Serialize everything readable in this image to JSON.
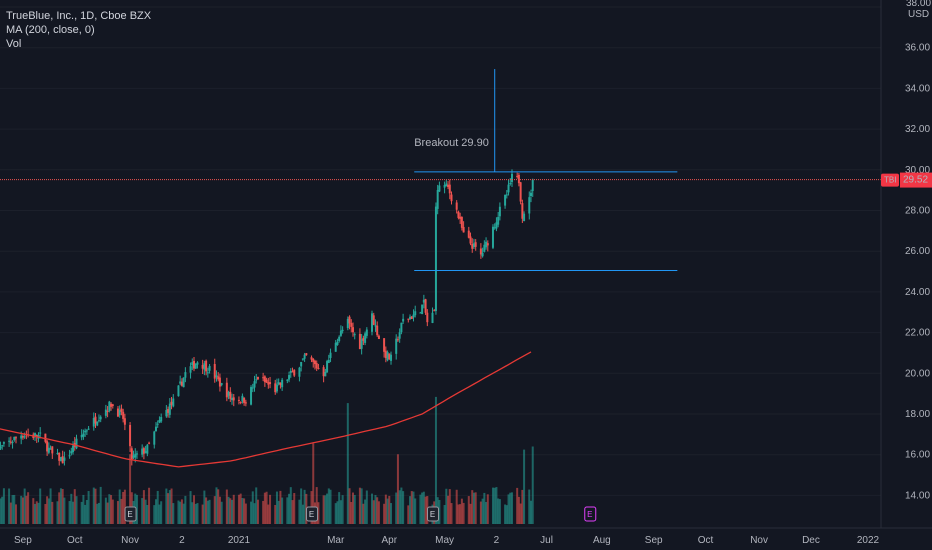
{
  "legend": {
    "symbol_line": "TrueBlue, Inc., 1D, Cboe BZX",
    "ma_line": "MA (200, close, 0)",
    "vol_line": "Vol"
  },
  "price_axis": {
    "unit": "USD",
    "top_label": "38.00",
    "ticks": [
      "36.00",
      "34.00",
      "32.00",
      "30.00",
      "28.00",
      "26.00",
      "24.00",
      "22.00",
      "20.00",
      "18.00",
      "16.00",
      "14.00"
    ]
  },
  "time_axis": {
    "ticks": [
      "Sep",
      "Oct",
      "Nov",
      "2",
      "2021",
      "Mar",
      "Apr",
      "May",
      "2",
      "Jul",
      "Aug",
      "Sep",
      "Oct",
      "Nov",
      "Dec",
      "2022"
    ]
  },
  "current_price": {
    "symbol": "TBI",
    "value": "29.52",
    "price": 29.52
  },
  "annotations": {
    "breakout_label": "Breakout 29.90",
    "resistance": 29.9,
    "support": 25.05,
    "spike_top": 34.95,
    "spike_bottom": 29.9
  },
  "earnings": {
    "label": "E",
    "past_dates": [
      "2020-11-02",
      "2021-02-15",
      "2021-04-26"
    ],
    "upcoming_dates": [
      "2021-07-26"
    ]
  },
  "colors": {
    "background": "#131722",
    "up": "#26a69a",
    "down": "#ef5350",
    "ma": "#e53935",
    "levels": "#2196f3",
    "price_line": "#ef5350",
    "badge": "#f23645",
    "earn_upcoming": "#e040fb"
  },
  "chart_data": {
    "type": "candlestick",
    "ylim": [
      13.0,
      38.0
    ],
    "x_range": [
      "2020-08-17",
      "2022-01-14"
    ],
    "anchors": [
      [
        "2020-08-17",
        16.2
      ],
      [
        "2020-08-31",
        17.0
      ],
      [
        "2020-09-11",
        16.9
      ],
      [
        "2020-09-18",
        16.0
      ],
      [
        "2020-09-25",
        15.7
      ],
      [
        "2020-10-02",
        16.6
      ],
      [
        "2020-10-09",
        17.4
      ],
      [
        "2020-10-16",
        18.0
      ],
      [
        "2020-10-22",
        18.5
      ],
      [
        "2020-10-29",
        17.8
      ],
      [
        "2020-11-03",
        15.8
      ],
      [
        "2020-11-12",
        16.3
      ],
      [
        "2020-11-20",
        17.8
      ],
      [
        "2020-11-27",
        18.6
      ],
      [
        "2020-12-04",
        20.0
      ],
      [
        "2020-12-11",
        20.6
      ],
      [
        "2020-12-18",
        20.2
      ],
      [
        "2020-12-30",
        18.8
      ],
      [
        "2021-01-08",
        18.7
      ],
      [
        "2021-01-15",
        19.8
      ],
      [
        "2021-01-25",
        19.2
      ],
      [
        "2021-02-05",
        20.1
      ],
      [
        "2021-02-12",
        20.8
      ],
      [
        "2021-02-22",
        20.0
      ],
      [
        "2021-03-01",
        21.6
      ],
      [
        "2021-03-08",
        22.5
      ],
      [
        "2021-03-15",
        21.4
      ],
      [
        "2021-03-22",
        22.8
      ],
      [
        "2021-03-29",
        21.0
      ],
      [
        "2021-04-02",
        20.7
      ],
      [
        "2021-04-09",
        22.6
      ],
      [
        "2021-04-16",
        22.9
      ],
      [
        "2021-04-21",
        23.4
      ],
      [
        "2021-04-23",
        22.5
      ],
      [
        "2021-04-27",
        23.0
      ],
      [
        "2021-04-28",
        28.4
      ],
      [
        "2021-04-30",
        29.3
      ],
      [
        "2021-05-05",
        29.1
      ],
      [
        "2021-05-10",
        28.0
      ],
      [
        "2021-05-14",
        26.8
      ],
      [
        "2021-05-19",
        26.3
      ],
      [
        "2021-05-24",
        25.8
      ],
      [
        "2021-05-28",
        26.5
      ],
      [
        "2021-06-04",
        28.0
      ],
      [
        "2021-06-08",
        28.8
      ],
      [
        "2021-06-11",
        29.6
      ],
      [
        "2021-06-15",
        29.5
      ],
      [
        "2021-06-17",
        27.8
      ],
      [
        "2021-06-21",
        28.5
      ],
      [
        "2021-06-23",
        29.52
      ]
    ],
    "ma200": [
      [
        "2020-08-17",
        17.3
      ],
      [
        "2020-09-30",
        16.5
      ],
      [
        "2020-10-30",
        15.8
      ],
      [
        "2020-11-30",
        15.4
      ],
      [
        "2020-12-31",
        15.7
      ],
      [
        "2021-01-31",
        16.3
      ],
      [
        "2021-02-28",
        16.8
      ],
      [
        "2021-03-31",
        17.4
      ],
      [
        "2021-04-20",
        18.0
      ],
      [
        "2021-05-10",
        19.0
      ],
      [
        "2021-05-31",
        20.0
      ],
      [
        "2021-06-23",
        21.1
      ]
    ],
    "volume_spikes": [
      [
        "2020-11-02",
        0.45
      ],
      [
        "2021-02-16",
        0.52
      ],
      [
        "2021-03-08",
        0.78
      ],
      [
        "2021-04-06",
        0.45
      ],
      [
        "2021-04-28",
        0.82
      ],
      [
        "2021-06-18",
        0.48
      ],
      [
        "2021-06-23",
        0.5
      ]
    ]
  }
}
